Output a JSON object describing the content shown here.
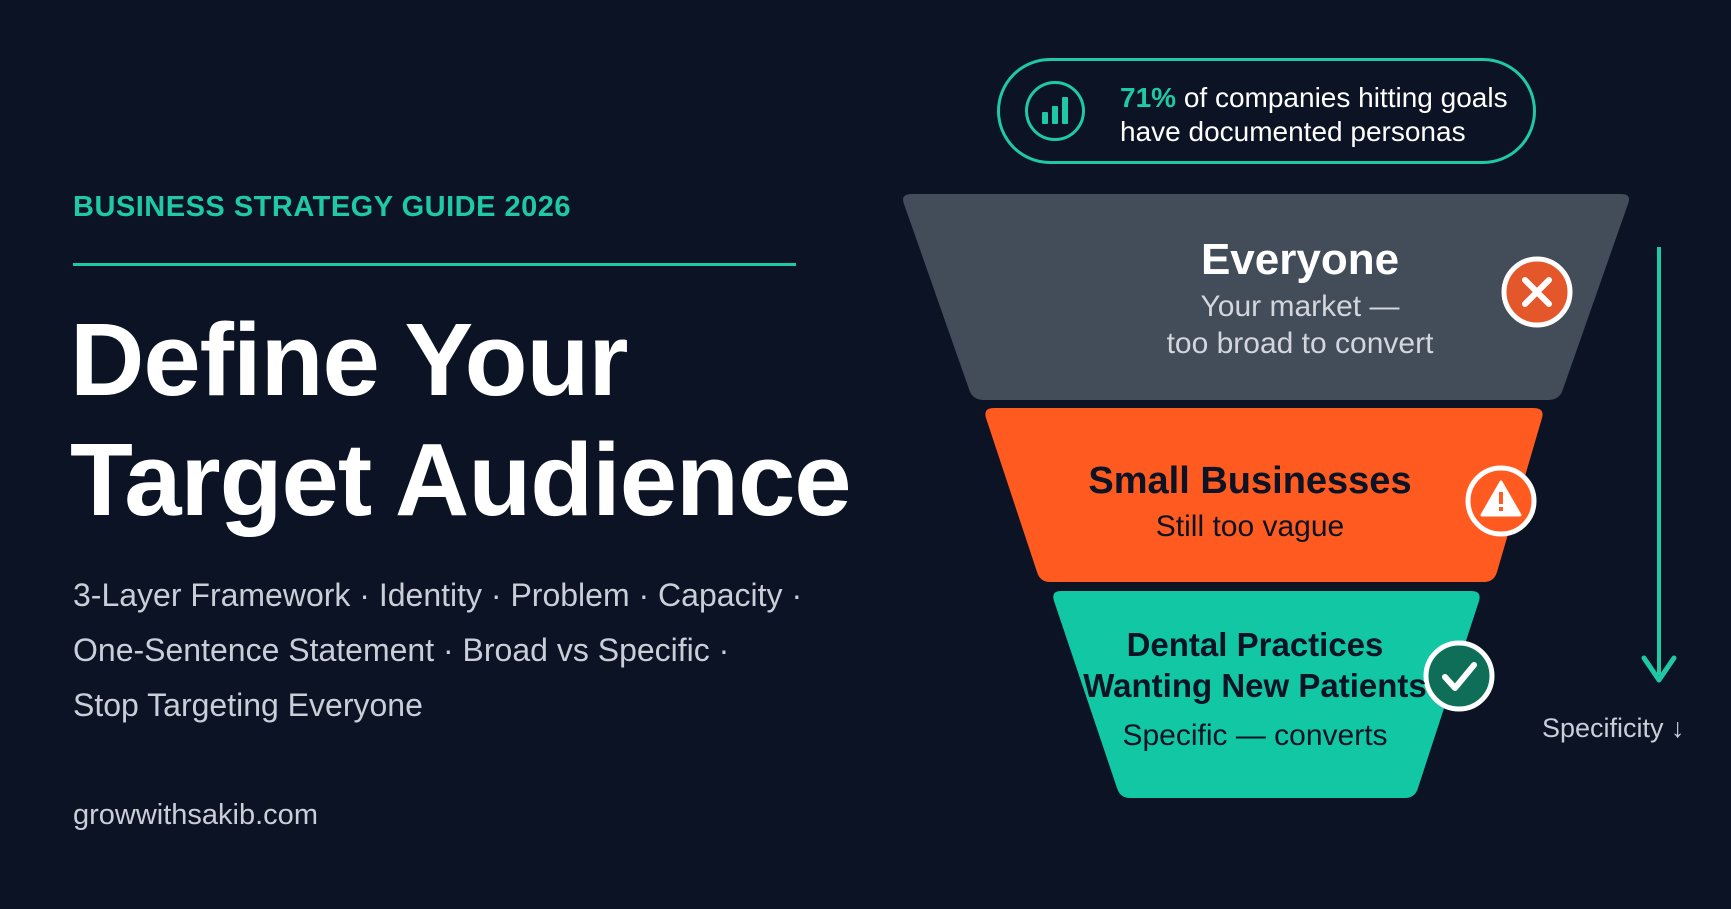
{
  "header": {
    "eyebrow": "BUSINESS STRATEGY GUIDE 2026",
    "title_line1": "Define Your",
    "title_line2": "Target Audience",
    "subtitle_line1": "3-Layer Framework · Identity · Problem · Capacity ·",
    "subtitle_line2": "One-Sentence Statement · Broad vs Specific ·",
    "subtitle_line3": "Stop Targeting Everyone",
    "website": "growwithsakib.com"
  },
  "stat": {
    "icon": "bar-chart-icon",
    "value": "71%",
    "text_line1": " of companies hitting goals",
    "text_line2": "have documented personas"
  },
  "funnel": {
    "tiers": [
      {
        "title": "Everyone",
        "subtitle_line1": "Your market —",
        "subtitle_line2": "too broad to convert",
        "status_icon": "x-mark-icon",
        "color": "#434c59"
      },
      {
        "title": "Small Businesses",
        "subtitle_line1": "Still too vague",
        "status_icon": "warning-icon",
        "color": "#ff5a1f"
      },
      {
        "title_line1": "Dental Practices",
        "title_line2": "Wanting New Patients",
        "subtitle_line1": "Specific — converts",
        "status_icon": "check-mark-icon",
        "color": "#11c7a4"
      }
    ],
    "axis_label": "Specificity ↓"
  },
  "colors": {
    "background": "#0b1324",
    "accent": "#1fc9a5",
    "warning": "#ff5a1f",
    "error": "#e4572b"
  }
}
